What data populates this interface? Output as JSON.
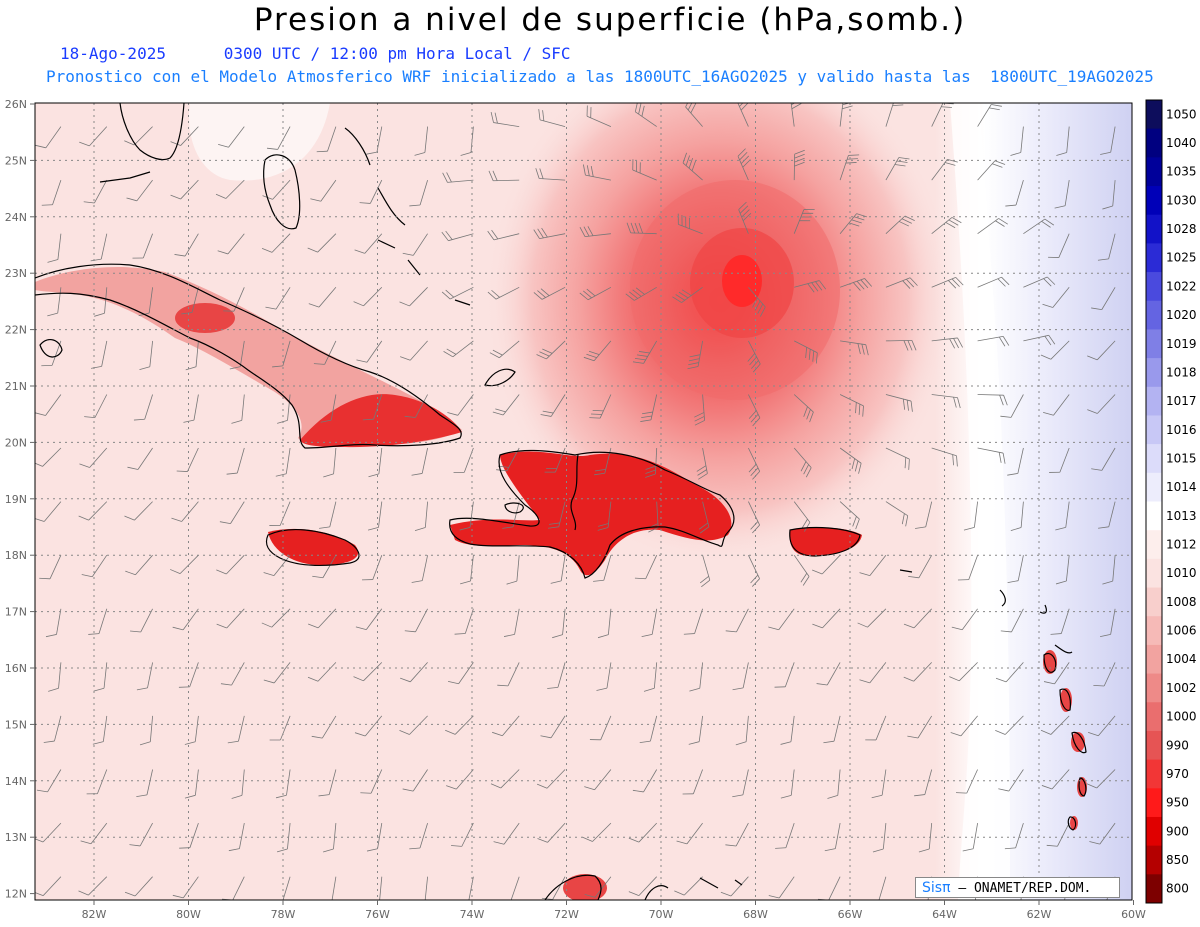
{
  "header": {
    "title": "Presion a nivel de superficie (hPa,somb.)",
    "date": "18-Ago-2025",
    "time_info": "0300 UTC / 12:00 pm Hora Local / SFC",
    "model_info": "Pronostico con el Modelo Atmosferico WRF inicializado a las 1800UTC_16AGO2025 y valido hasta las  1800UTC_19AGO2025"
  },
  "map": {
    "lat_labels": [
      "26N",
      "25N",
      "24N",
      "23N",
      "22N",
      "21N",
      "20N",
      "19N",
      "18N",
      "17N",
      "16N",
      "15N",
      "14N",
      "13N",
      "12N"
    ],
    "lon_labels": [
      "82W",
      "80W",
      "78W",
      "76W",
      "74W",
      "72W",
      "70W",
      "68W",
      "66W",
      "64W",
      "62W",
      "60W"
    ],
    "low_center": {
      "lon": -68.2,
      "lat": 22.9
    },
    "colors": {
      "ocean": "#fbe3e1",
      "high": "#ccceef",
      "low_core": "#ff3030",
      "land_low": "#e8202a"
    }
  },
  "colorbar": {
    "levels": [
      "1050",
      "1040",
      "1035",
      "1030",
      "1028",
      "1025",
      "1022",
      "1020",
      "1019",
      "1018",
      "1017",
      "1016",
      "1015",
      "1014",
      "1013",
      "1012",
      "1010",
      "1008",
      "1006",
      "1004",
      "1002",
      "1000",
      "990",
      "970",
      "950",
      "900",
      "850",
      "800"
    ],
    "colors": [
      "#0d0d5c",
      "#000080",
      "#00009a",
      "#0000b8",
      "#1212c8",
      "#2b2bd6",
      "#4a4ade",
      "#6464e2",
      "#7f7fe6",
      "#9999ec",
      "#b3b3f2",
      "#c8c8f6",
      "#dcdcfa",
      "#ededfc",
      "#ffffff",
      "#fdeeec",
      "#fbe3e1",
      "#f8cfcc",
      "#f6bab7",
      "#f2a3a0",
      "#ee8a88",
      "#ea6e6e",
      "#e65454",
      "#f23636",
      "#ff1a1a",
      "#e00000",
      "#b40000",
      "#7d0000"
    ]
  },
  "credit": {
    "logo": "Sisπ",
    "text": "– ONAMET/REP.DOM."
  }
}
